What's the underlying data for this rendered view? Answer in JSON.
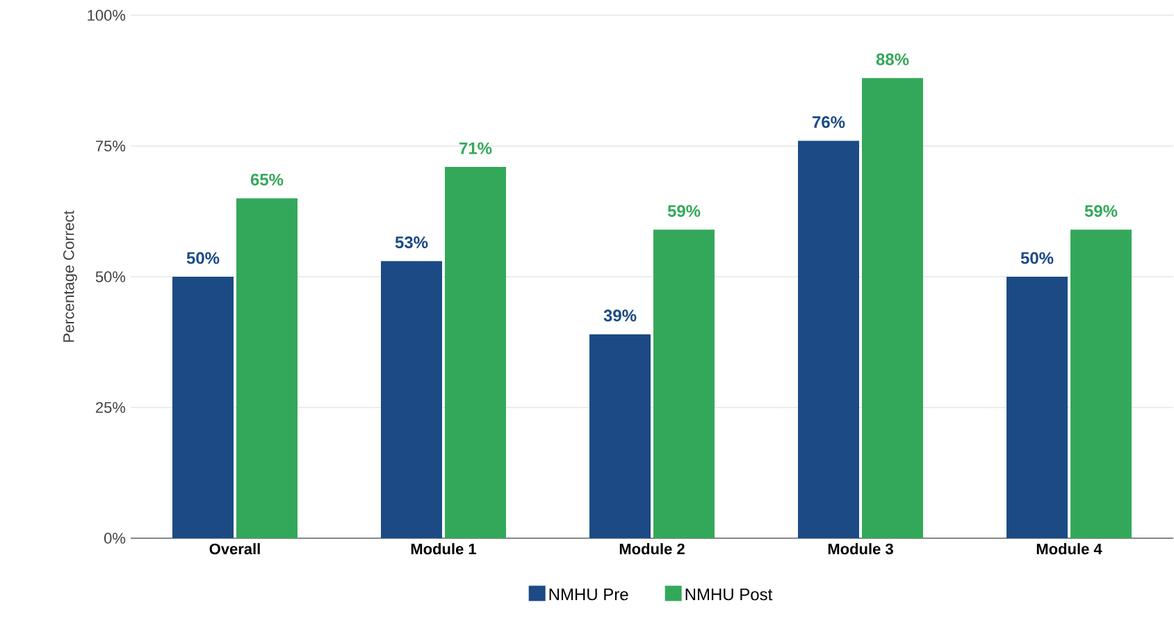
{
  "chart_data": {
    "type": "bar",
    "ylabel": "Percentage Correct",
    "categories": [
      "Overall",
      "Module 1",
      "Module 2",
      "Module 3",
      "Module 4"
    ],
    "series": [
      {
        "name": "NMHU Pre",
        "color": "#1c4a85",
        "values": [
          50,
          53,
          39,
          76,
          50
        ],
        "value_labels": [
          "50%",
          "53%",
          "39%",
          "76%",
          "50%"
        ]
      },
      {
        "name": "NMHU Post",
        "color": "#34a85a",
        "values": [
          65,
          71,
          59,
          88,
          59
        ],
        "value_labels": [
          "65%",
          "71%",
          "59%",
          "88%",
          "59%"
        ]
      }
    ],
    "ylim": [
      0,
      100
    ],
    "yticks": [
      {
        "value": 0,
        "label": "0%"
      },
      {
        "value": 25,
        "label": "25%"
      },
      {
        "value": 50,
        "label": "50%"
      },
      {
        "value": 75,
        "label": "75%"
      },
      {
        "value": 100,
        "label": "100%"
      }
    ],
    "grid": "y",
    "legend": "bottom"
  }
}
